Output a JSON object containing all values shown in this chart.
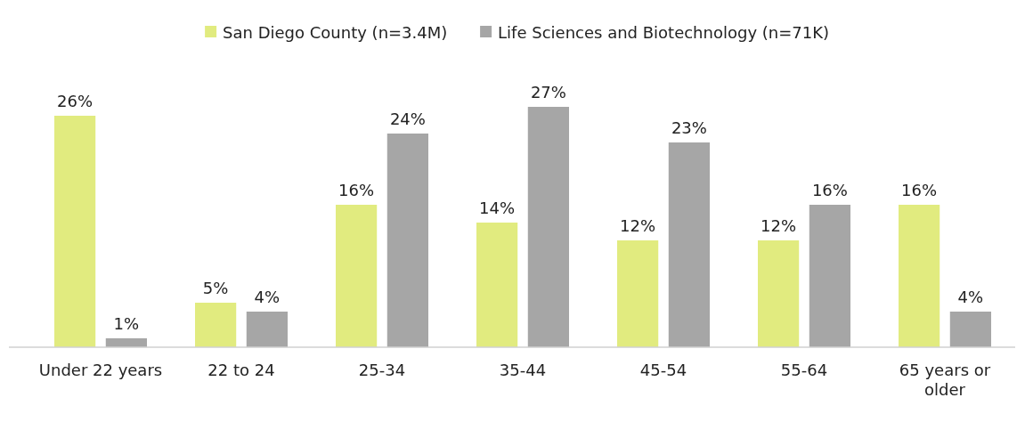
{
  "chart_data": {
    "type": "bar",
    "categories": [
      "Under 22 years",
      "22 to 24",
      "25-34",
      "35-44",
      "45-54",
      "55-64",
      "65 years or older"
    ],
    "series": [
      {
        "name": "San Diego County (n=3.4M)",
        "color": "#e1eb7f",
        "values": [
          26,
          5,
          16,
          14,
          12,
          12,
          16
        ],
        "value_labels": [
          "26%",
          "5%",
          "16%",
          "14%",
          "12%",
          "12%",
          "16%"
        ]
      },
      {
        "name": "Life Sciences and Biotechnology (n=71K)",
        "color": "#a6a6a6",
        "values": [
          1,
          4,
          24,
          27,
          23,
          16,
          4
        ],
        "value_labels": [
          "1%",
          "4%",
          "24%",
          "27%",
          "23%",
          "16%",
          "4%"
        ]
      }
    ],
    "legend": "top"
  }
}
